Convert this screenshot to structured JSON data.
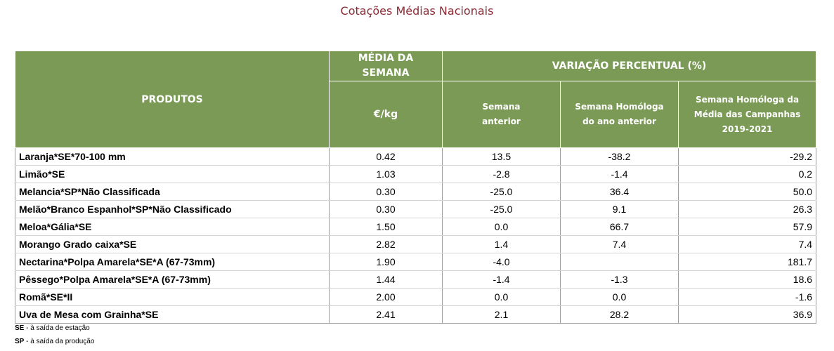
{
  "title": "Cotações Médias Nacionais",
  "header": {
    "produtos": "PRODUTOS",
    "media_line1": "MÉDIA DA",
    "media_line2": "SEMANA",
    "variacao": "VARIAÇÃO PERCENTUAL (%)",
    "unit": "€/kg",
    "col_anterior_1": "Semana",
    "col_anterior_2": "anterior",
    "col_homologa_1": "Semana Homóloga",
    "col_homologa_2": "do ano anterior",
    "col_campanhas_1": "Semana Homóloga da",
    "col_campanhas_2": "Média das Campanhas",
    "col_campanhas_3": "2019-2021"
  },
  "rows": [
    {
      "produto": "Laranja*SE*70-100 mm",
      "media": "0.42",
      "anterior": "13.5",
      "homologa": "-38.2",
      "campanhas": "-29.2"
    },
    {
      "produto": "Limão*SE",
      "media": "1.03",
      "anterior": "-2.8",
      "homologa": "-1.4",
      "campanhas": "0.2"
    },
    {
      "produto": "Melancia*SP*Não Classificada",
      "media": "0.30",
      "anterior": "-25.0",
      "homologa": "36.4",
      "campanhas": "50.0"
    },
    {
      "produto": "Melão*Branco Espanhol*SP*Não Classificado",
      "media": "0.30",
      "anterior": "-25.0",
      "homologa": "9.1",
      "campanhas": "26.3"
    },
    {
      "produto": "Meloa*Gália*SE",
      "media": "1.50",
      "anterior": "0.0",
      "homologa": "66.7",
      "campanhas": "57.9"
    },
    {
      "produto": "Morango Grado caixa*SE",
      "media": "2.82",
      "anterior": "1.4",
      "homologa": "7.4",
      "campanhas": "7.4"
    },
    {
      "produto": "Nectarina*Polpa Amarela*SE*A (67-73mm)",
      "media": "1.90",
      "anterior": "-4.0",
      "homologa": "",
      "campanhas": "181.7"
    },
    {
      "produto": "Pêssego*Polpa Amarela*SE*A (67-73mm)",
      "media": "1.44",
      "anterior": "-1.4",
      "homologa": "-1.3",
      "campanhas": "18.6"
    },
    {
      "produto": "Romã*SE*II",
      "media": "2.00",
      "anterior": "0.0",
      "homologa": "0.0",
      "campanhas": "-1.6"
    },
    {
      "produto": "Uva de Mesa com Grainha*SE",
      "media": "2.41",
      "anterior": "2.1",
      "homologa": "28.2",
      "campanhas": "36.9"
    }
  ],
  "notes": [
    {
      "abbr": "SE",
      "text": " - à saída de estação"
    },
    {
      "abbr": "SP",
      "text": " - à saída da produção"
    }
  ]
}
